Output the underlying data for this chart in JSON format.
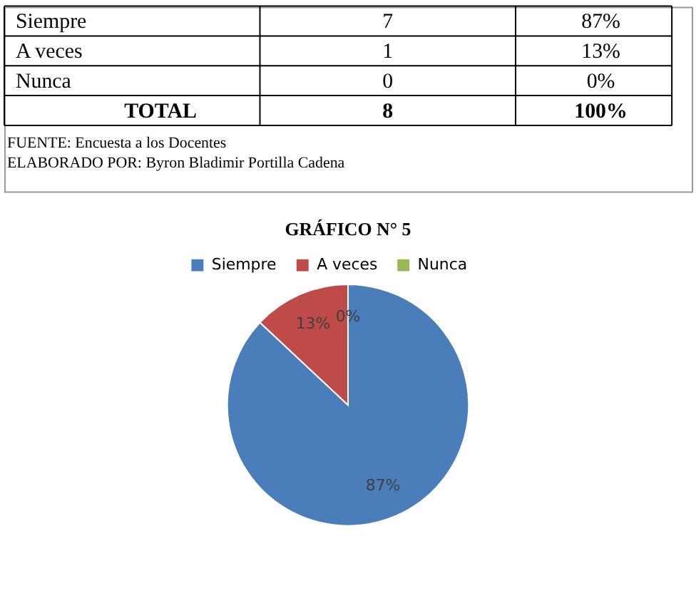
{
  "chart_data": [
    {
      "type": "other",
      "annotations": [
        "Siempre",
        "7",
        "87%",
        "A veces",
        "1",
        "13%",
        "Nunca",
        "0",
        "0%",
        "TOTAL",
        "8",
        "100%",
        "FUENTE: Encuesta a los Docentes",
        "ELABORADO POR: Byron Bladimir Portilla Cadena"
      ]
    },
    {
      "type": "pie",
      "title": "GRÁFICO N° 5",
      "categories": [
        "Siempre",
        "A veces",
        "Nunca"
      ],
      "values": [
        87,
        13,
        0
      ],
      "colors": [
        "#4a7ebb",
        "#be4b48",
        "#98b954"
      ],
      "value_labels": [
        "87%",
        "13%",
        "0%"
      ],
      "legend": "top"
    }
  ]
}
